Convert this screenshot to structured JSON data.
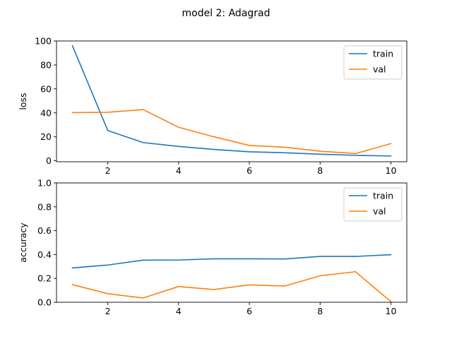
{
  "figure": {
    "title": "model 2: Adagrad"
  },
  "colors": {
    "train": "#1f77b4",
    "val": "#ff7f0e"
  },
  "chart_data": [
    {
      "type": "line",
      "ylabel": "loss",
      "xlabel": "",
      "x": [
        1,
        2,
        3,
        4,
        5,
        6,
        7,
        8,
        9,
        10
      ],
      "xlim": [
        0.55,
        10.45
      ],
      "ylim": [
        -0.8,
        100
      ],
      "xticks": [
        2,
        4,
        6,
        8,
        10
      ],
      "yticks": [
        0,
        20,
        40,
        60,
        80,
        100
      ],
      "legend": "top-right",
      "grid": false,
      "series": [
        {
          "name": "train",
          "values": [
            96.0,
            25.2,
            15.2,
            12.0,
            9.5,
            7.5,
            6.7,
            5.5,
            4.5,
            4.0
          ]
        },
        {
          "name": "val",
          "values": [
            40.2,
            40.5,
            42.7,
            28.0,
            20.0,
            12.8,
            11.3,
            8.0,
            6.0,
            14.3
          ]
        }
      ]
    },
    {
      "type": "line",
      "ylabel": "accuracy",
      "xlabel": "",
      "x": [
        1,
        2,
        3,
        4,
        5,
        6,
        7,
        8,
        9,
        10
      ],
      "xlim": [
        0.55,
        10.45
      ],
      "ylim": [
        0.0,
        1.0
      ],
      "xticks": [
        2,
        4,
        6,
        8,
        10
      ],
      "yticks": [
        0.0,
        0.2,
        0.4,
        0.6,
        0.8,
        1.0
      ],
      "ytick_labels": [
        "0.0",
        "0.2",
        "0.4",
        "0.6",
        "0.8",
        "1.0"
      ],
      "legend": "top-right",
      "grid": false,
      "series": [
        {
          "name": "train",
          "values": [
            0.288,
            0.312,
            0.353,
            0.354,
            0.364,
            0.364,
            0.363,
            0.384,
            0.384,
            0.399
          ]
        },
        {
          "name": "val",
          "values": [
            0.148,
            0.072,
            0.036,
            0.132,
            0.107,
            0.146,
            0.136,
            0.222,
            0.256,
            0.005
          ]
        }
      ]
    }
  ]
}
